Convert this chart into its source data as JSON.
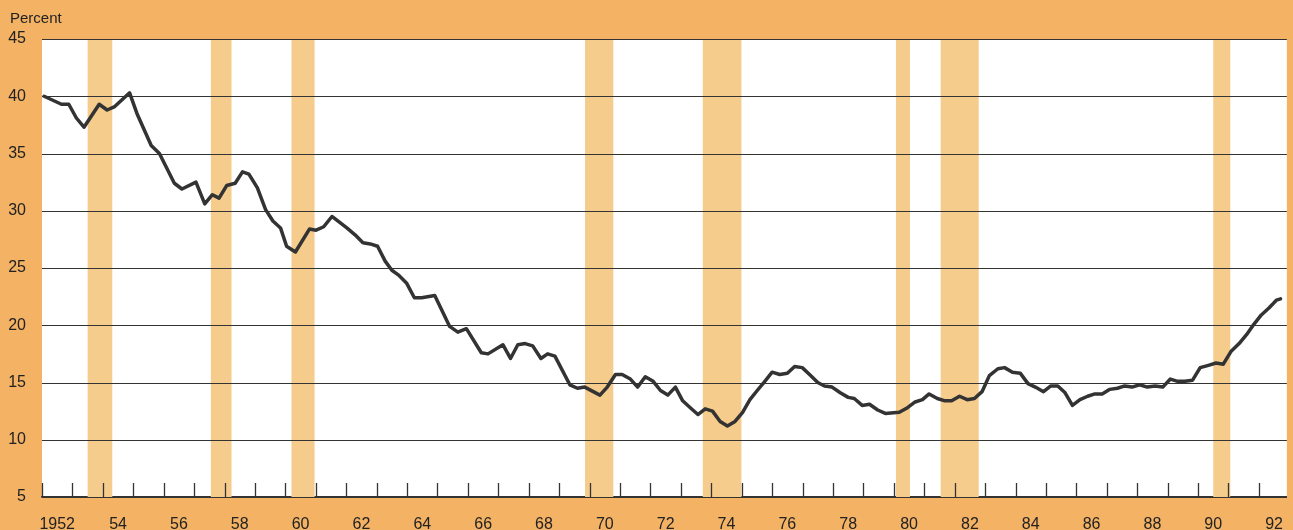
{
  "chart_data": {
    "type": "line",
    "ylabel": "Percent",
    "x": [
      1951.57,
      1952.14,
      1952.38,
      1952.63,
      1952.88,
      1953.38,
      1953.64,
      1953.89,
      1954.38,
      1954.62,
      1955.09,
      1955.36,
      1955.85,
      1956.1,
      1956.56,
      1956.85,
      1957.1,
      1957.32,
      1957.57,
      1957.85,
      1958.09,
      1958.3,
      1958.58,
      1958.85,
      1959.09,
      1959.34,
      1959.54,
      1959.83,
      1960.29,
      1960.51,
      1960.76,
      1961.03,
      1961.52,
      1961.79,
      1962.05,
      1962.29,
      1962.53,
      1962.78,
      1963.0,
      1963.21,
      1963.48,
      1963.74,
      1963.98,
      1964.41,
      1964.9,
      1965.17,
      1965.45,
      1965.94,
      1966.16,
      1966.65,
      1966.9,
      1967.14,
      1967.38,
      1967.63,
      1967.9,
      1968.12,
      1968.36,
      1968.85,
      1969.1,
      1969.34,
      1969.84,
      1970.08,
      1970.35,
      1970.57,
      1970.84,
      1971.08,
      1971.33,
      1971.59,
      1971.83,
      1972.07,
      1972.32,
      1972.56,
      1972.81,
      1973.06,
      1973.3,
      1973.54,
      1973.79,
      1974.03,
      1974.28,
      1974.53,
      1974.77,
      1975.01,
      1975.26,
      1975.5,
      1975.75,
      1976.0,
      1976.24,
      1976.49,
      1976.73,
      1977.0,
      1977.22,
      1977.47,
      1977.74,
      1978.0,
      1978.2,
      1978.46,
      1978.7,
      1978.97,
      1979.22,
      1979.68,
      1979.95,
      1980.2,
      1980.44,
      1980.66,
      1980.93,
      1981.18,
      1981.4,
      1981.66,
      1981.91,
      1982.15,
      1982.4,
      1982.64,
      1982.92,
      1983.14,
      1983.4,
      1983.66,
      1983.91,
      1984.15,
      1984.42,
      1984.66,
      1984.89,
      1985.13,
      1985.37,
      1985.62,
      1985.87,
      1986.11,
      1986.35,
      1986.6,
      1986.85,
      1987.09,
      1987.33,
      1987.58,
      1987.83,
      1988.09,
      1988.34,
      1988.59,
      1988.83,
      1989.07,
      1989.32,
      1989.57,
      1989.84,
      1990.09,
      1990.33,
      1990.58,
      1990.85,
      1991.1,
      1991.34,
      1991.58,
      1991.83,
      1992.08,
      1992.21
    ],
    "series": [
      {
        "color": "#333333",
        "values": [
          40.0,
          39.3,
          39.3,
          38.1,
          37.3,
          39.3,
          38.8,
          39.1,
          40.3,
          38.5,
          35.7,
          35.0,
          32.4,
          31.9,
          32.5,
          30.6,
          31.4,
          31.1,
          32.2,
          32.4,
          33.4,
          33.2,
          32.0,
          30.1,
          29.1,
          28.5,
          26.9,
          26.4,
          28.4,
          28.3,
          28.6,
          29.5,
          28.5,
          27.9,
          27.2,
          27.1,
          26.9,
          25.6,
          24.8,
          24.4,
          23.7,
          22.4,
          22.4,
          22.6,
          19.9,
          19.4,
          19.7,
          17.6,
          17.5,
          18.3,
          17.1,
          18.3,
          18.4,
          18.2,
          17.1,
          17.5,
          17.3,
          14.8,
          14.5,
          14.6,
          13.9,
          14.6,
          15.7,
          15.7,
          15.3,
          14.6,
          15.5,
          15.1,
          14.3,
          13.9,
          14.6,
          13.4,
          12.8,
          12.2,
          12.7,
          12.5,
          11.6,
          11.2,
          11.6,
          12.4,
          13.5,
          14.3,
          15.1,
          15.9,
          15.7,
          15.8,
          16.4,
          16.3,
          15.7,
          15.0,
          14.7,
          14.6,
          14.1,
          13.7,
          13.6,
          13.0,
          13.1,
          12.6,
          12.3,
          12.4,
          12.8,
          13.3,
          13.5,
          14.0,
          13.6,
          13.4,
          13.4,
          13.8,
          13.5,
          13.6,
          14.2,
          15.6,
          16.2,
          16.3,
          15.9,
          15.8,
          14.9,
          14.6,
          14.2,
          14.7,
          14.7,
          14.1,
          13.0,
          13.5,
          13.8,
          14.0,
          14.0,
          14.4,
          14.5,
          14.7,
          14.6,
          14.8,
          14.6,
          14.7,
          14.6,
          15.3,
          15.1,
          15.1,
          15.2,
          16.3,
          16.5,
          16.7,
          16.6,
          17.7,
          18.4,
          19.2,
          20.1,
          20.9,
          21.5,
          22.2,
          22.3
        ]
      }
    ],
    "bands": [
      {
        "axis": "x",
        "from": 1953.0,
        "to": 1953.81,
        "color": "#f6cc8c"
      },
      {
        "axis": "x",
        "from": 1957.05,
        "to": 1957.73,
        "color": "#f6cc8c"
      },
      {
        "axis": "x",
        "from": 1959.7,
        "to": 1960.46,
        "color": "#f6cc8c"
      },
      {
        "axis": "x",
        "from": 1969.35,
        "to": 1970.28,
        "color": "#f6cc8c"
      },
      {
        "axis": "x",
        "from": 1973.22,
        "to": 1974.49,
        "color": "#f6cc8c"
      },
      {
        "axis": "x",
        "from": 1979.57,
        "to": 1980.03,
        "color": "#f6cc8c"
      },
      {
        "axis": "x",
        "from": 1981.04,
        "to": 1982.29,
        "color": "#f6cc8c"
      },
      {
        "axis": "x",
        "from": 1990.0,
        "to": 1990.56,
        "color": "#f6cc8c"
      }
    ],
    "xlim": [
      1951.5,
      1992.42
    ],
    "xticks": [
      {
        "value": 1951.5,
        "label": null
      },
      {
        "value": 1952,
        "label": "1952"
      },
      {
        "value": 1952.5,
        "label": null
      },
      {
        "value": 1953.5,
        "label": null
      },
      {
        "value": 1954,
        "label": "54"
      },
      {
        "value": 1954.5,
        "label": null
      },
      {
        "value": 1955.5,
        "label": null
      },
      {
        "value": 1956,
        "label": "56"
      },
      {
        "value": 1956.5,
        "label": null
      },
      {
        "value": 1957.5,
        "label": null
      },
      {
        "value": 1958,
        "label": "58"
      },
      {
        "value": 1958.5,
        "label": null
      },
      {
        "value": 1959.5,
        "label": null
      },
      {
        "value": 1960,
        "label": "60"
      },
      {
        "value": 1960.5,
        "label": null
      },
      {
        "value": 1961.5,
        "label": null
      },
      {
        "value": 1962,
        "label": "62"
      },
      {
        "value": 1962.5,
        "label": null
      },
      {
        "value": 1963.5,
        "label": null
      },
      {
        "value": 1964,
        "label": "64"
      },
      {
        "value": 1964.5,
        "label": null
      },
      {
        "value": 1965.5,
        "label": null
      },
      {
        "value": 1966,
        "label": "66"
      },
      {
        "value": 1966.5,
        "label": null
      },
      {
        "value": 1967.5,
        "label": null
      },
      {
        "value": 1968,
        "label": "68"
      },
      {
        "value": 1968.5,
        "label": null
      },
      {
        "value": 1969.5,
        "label": null
      },
      {
        "value": 1970,
        "label": "70"
      },
      {
        "value": 1970.5,
        "label": null
      },
      {
        "value": 1971.5,
        "label": null
      },
      {
        "value": 1972,
        "label": "72"
      },
      {
        "value": 1972.5,
        "label": null
      },
      {
        "value": 1973.5,
        "label": null
      },
      {
        "value": 1974,
        "label": "74"
      },
      {
        "value": 1974.5,
        "label": null
      },
      {
        "value": 1975.5,
        "label": null
      },
      {
        "value": 1976,
        "label": "76"
      },
      {
        "value": 1976.5,
        "label": null
      },
      {
        "value": 1977.5,
        "label": null
      },
      {
        "value": 1978,
        "label": "78"
      },
      {
        "value": 1978.5,
        "label": null
      },
      {
        "value": 1979.5,
        "label": null
      },
      {
        "value": 1980,
        "label": "80"
      },
      {
        "value": 1980.5,
        "label": null
      },
      {
        "value": 1981.5,
        "label": null
      },
      {
        "value": 1982,
        "label": "82"
      },
      {
        "value": 1982.5,
        "label": null
      },
      {
        "value": 1983.5,
        "label": null
      },
      {
        "value": 1984,
        "label": "84"
      },
      {
        "value": 1984.5,
        "label": null
      },
      {
        "value": 1985.5,
        "label": null
      },
      {
        "value": 1986,
        "label": "86"
      },
      {
        "value": 1986.5,
        "label": null
      },
      {
        "value": 1987.5,
        "label": null
      },
      {
        "value": 1988,
        "label": "88"
      },
      {
        "value": 1988.5,
        "label": null
      },
      {
        "value": 1989.5,
        "label": null
      },
      {
        "value": 1990,
        "label": "90"
      },
      {
        "value": 1990.5,
        "label": null
      },
      {
        "value": 1991.5,
        "label": null
      },
      {
        "value": 1992,
        "label": "92"
      }
    ],
    "ylim": [
      5,
      45
    ],
    "yticks": [
      5,
      10,
      15,
      20,
      25,
      30,
      35,
      40,
      45
    ],
    "grid": "y",
    "legend": false
  }
}
